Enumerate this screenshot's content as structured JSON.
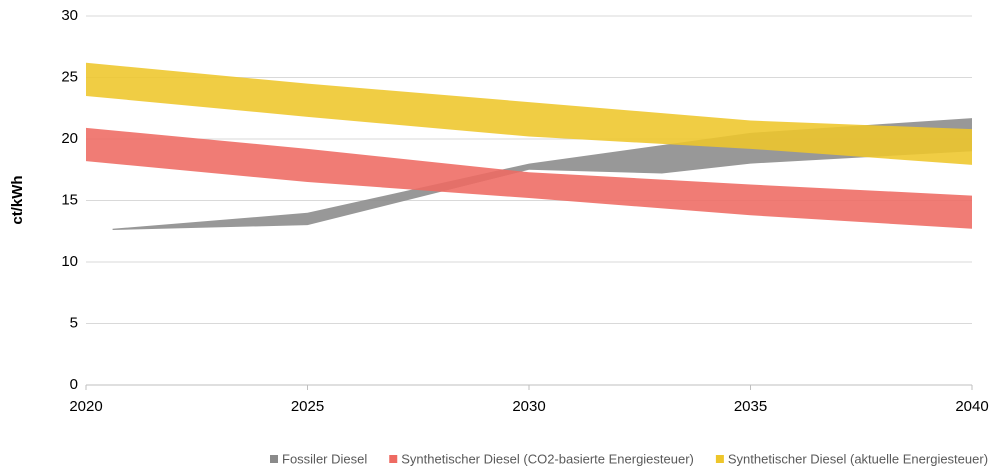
{
  "chart_data": {
    "type": "range-area",
    "y_label": "ct/kWh",
    "xlim": [
      2020,
      2040
    ],
    "xticks": [
      2020,
      2025,
      2030,
      2035,
      2040
    ],
    "ylim": [
      0,
      30
    ],
    "yticks": [
      0,
      5,
      10,
      15,
      20,
      25,
      30
    ],
    "grid": true,
    "legend": "bottom",
    "series": [
      {
        "name": "Fossiler Diesel",
        "color": "#8a8a8a",
        "x": [
          2020.6,
          2025,
          2030,
          2033,
          2035,
          2040
        ],
        "low": [
          12.6,
          13.0,
          17.5,
          17.2,
          18.0,
          19.0
        ],
        "high": [
          12.7,
          14.0,
          18.0,
          19.5,
          20.5,
          21.7
        ]
      },
      {
        "name": "Synthetischer Diesel (CO2-basierte Energiesteuer)",
        "color": "#ee6a62",
        "x": [
          2020,
          2025,
          2030,
          2035,
          2040
        ],
        "low": [
          18.2,
          16.5,
          15.2,
          13.8,
          12.7
        ],
        "high": [
          20.9,
          19.2,
          17.3,
          16.3,
          15.4
        ]
      },
      {
        "name": "Synthetischer Diesel (aktuelle Energiesteuer)",
        "color": "#eec62a",
        "x": [
          2020,
          2025,
          2030,
          2035,
          2040
        ],
        "low": [
          23.5,
          21.8,
          20.2,
          19.2,
          17.9
        ],
        "high": [
          26.2,
          24.5,
          23.0,
          21.5,
          20.8
        ]
      }
    ]
  }
}
